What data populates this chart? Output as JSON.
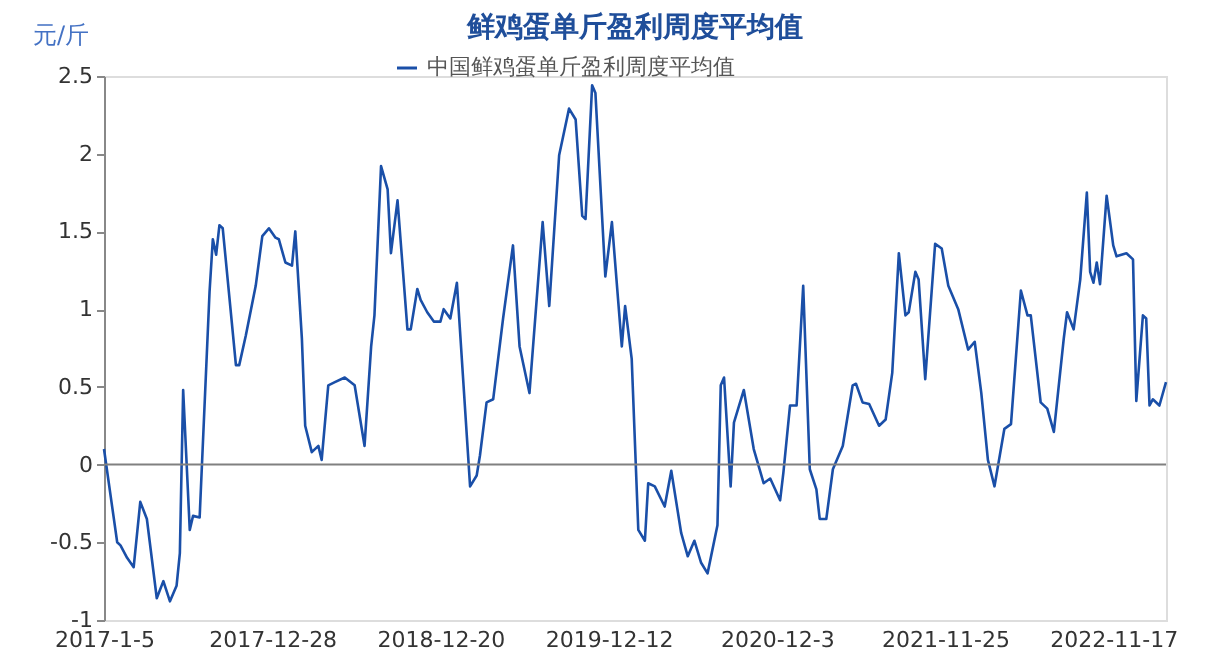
{
  "chart_data": {
    "type": "line",
    "title": "鲜鸡蛋单斤盈利周度平均值",
    "ylabel": "元/斤",
    "xlim": [
      "2017-01-05",
      "2023-03-09"
    ],
    "xticks": [
      {
        "value": "2017-01-05",
        "label": "2017-1-5"
      },
      {
        "value": "2017-12-28",
        "label": "2017-12-28"
      },
      {
        "value": "2018-12-20",
        "label": "2018-12-20"
      },
      {
        "value": "2019-12-12",
        "label": "2019-12-12"
      },
      {
        "value": "2020-12-03",
        "label": "2020-12-3"
      },
      {
        "value": "2021-11-25",
        "label": "2021-11-25"
      },
      {
        "value": "2022-11-17",
        "label": "2022-11-17"
      }
    ],
    "ylim": [
      -1,
      2.5
    ],
    "yticks": [
      -1,
      -0.5,
      0,
      0.5,
      1,
      1.5,
      2,
      2.5
    ],
    "ref_lines": [
      {
        "axis": "y",
        "value": 0,
        "color": "#808080"
      }
    ],
    "grid": false,
    "legend": "top",
    "line_style": "solid",
    "series": [
      {
        "name": "中国鲜鸡蛋单斤盈利周度平均值",
        "color": "#1a4fa8",
        "x": [
          "2017-01-05",
          "2017-02-02",
          "2017-02-09",
          "2017-02-23",
          "2017-03-09",
          "2017-03-23",
          "2017-04-06",
          "2017-04-27",
          "2017-05-11",
          "2017-05-25",
          "2017-06-08",
          "2017-06-15",
          "2017-06-22",
          "2017-07-06",
          "2017-07-13",
          "2017-07-27",
          "2017-08-17",
          "2017-08-24",
          "2017-08-31",
          "2017-09-07",
          "2017-09-14",
          "2017-10-12",
          "2017-10-19",
          "2017-11-02",
          "2017-11-23",
          "2017-12-07",
          "2017-12-21",
          "2018-01-04",
          "2018-01-11",
          "2018-01-25",
          "2018-02-08",
          "2018-02-15",
          "2018-03-01",
          "2018-03-08",
          "2018-03-22",
          "2018-04-05",
          "2018-04-12",
          "2018-04-26",
          "2018-05-10",
          "2018-05-31",
          "2018-06-21",
          "2018-06-28",
          "2018-07-12",
          "2018-07-26",
          "2018-08-02",
          "2018-08-16",
          "2018-08-30",
          "2018-09-06",
          "2018-09-20",
          "2018-10-11",
          "2018-10-18",
          "2018-11-01",
          "2018-11-08",
          "2018-11-22",
          "2018-12-06",
          "2018-12-20",
          "2018-12-27",
          "2019-01-10",
          "2019-01-24",
          "2019-02-21",
          "2019-03-07",
          "2019-03-14",
          "2019-03-28",
          "2019-04-11",
          "2019-05-02",
          "2019-05-23",
          "2019-06-06",
          "2019-06-27",
          "2019-07-25",
          "2019-08-08",
          "2019-08-29",
          "2019-09-05",
          "2019-09-19",
          "2019-10-03",
          "2019-10-17",
          "2019-10-24",
          "2019-11-07",
          "2019-11-14",
          "2019-12-05",
          "2019-12-19",
          "2020-01-09",
          "2020-01-16",
          "2020-01-30",
          "2020-02-13",
          "2020-02-27",
          "2020-03-05",
          "2020-03-19",
          "2020-04-09",
          "2020-04-23",
          "2020-05-14",
          "2020-05-28",
          "2020-06-11",
          "2020-06-25",
          "2020-07-09",
          "2020-07-30",
          "2020-08-06",
          "2020-08-13",
          "2020-08-27",
          "2020-09-03",
          "2020-09-24",
          "2020-10-15",
          "2020-11-05",
          "2020-11-19",
          "2020-12-10",
          "2020-12-17",
          "2020-12-31",
          "2021-01-14",
          "2021-01-28",
          "2021-02-11",
          "2021-02-25",
          "2021-03-04",
          "2021-03-18",
          "2021-04-01",
          "2021-04-22",
          "2021-05-13",
          "2021-05-20",
          "2021-06-03",
          "2021-06-17",
          "2021-07-08",
          "2021-07-22",
          "2021-08-05",
          "2021-08-19",
          "2021-09-02",
          "2021-09-09",
          "2021-09-23",
          "2021-09-30",
          "2021-10-14",
          "2021-11-04",
          "2021-11-18",
          "2021-12-02",
          "2021-12-23",
          "2022-01-13",
          "2022-01-27",
          "2022-02-10",
          "2022-02-24",
          "2022-03-10",
          "2022-03-31",
          "2022-04-14",
          "2022-05-05",
          "2022-05-19",
          "2022-05-26",
          "2022-06-16",
          "2022-06-30",
          "2022-07-14",
          "2022-08-04",
          "2022-08-11",
          "2022-08-25",
          "2022-09-08",
          "2022-09-22",
          "2022-09-29",
          "2022-10-06",
          "2022-10-13",
          "2022-10-20",
          "2022-11-03",
          "2022-11-17",
          "2022-11-24",
          "2022-12-15",
          "2022-12-29",
          "2023-01-05",
          "2023-01-19",
          "2023-01-26",
          "2023-02-02",
          "2023-02-09",
          "2023-02-23",
          "2023-03-09"
        ],
        "values": [
          0.1,
          -0.5,
          -0.52,
          -0.6,
          -0.66,
          -0.24,
          -0.35,
          -0.86,
          -0.75,
          -0.88,
          -0.78,
          -0.57,
          0.48,
          -0.42,
          -0.33,
          -0.34,
          1.11,
          1.45,
          1.35,
          1.54,
          1.52,
          0.64,
          0.64,
          0.83,
          1.15,
          1.47,
          1.52,
          1.46,
          1.45,
          1.3,
          1.28,
          1.5,
          0.81,
          0.25,
          0.08,
          0.12,
          0.03,
          0.51,
          0.53,
          0.56,
          0.51,
          0.38,
          0.12,
          0.76,
          0.96,
          1.92,
          1.77,
          1.36,
          1.7,
          0.87,
          0.87,
          1.13,
          1.06,
          0.98,
          0.92,
          0.92,
          1.0,
          0.94,
          1.17,
          -0.14,
          -0.07,
          0.06,
          0.4,
          0.42,
          0.94,
          1.41,
          0.76,
          0.46,
          1.56,
          1.02,
          1.99,
          2.09,
          2.29,
          2.22,
          1.6,
          1.58,
          2.44,
          2.39,
          1.21,
          1.56,
          0.76,
          1.02,
          0.68,
          -0.42,
          -0.49,
          -0.12,
          -0.14,
          -0.27,
          -0.04,
          -0.44,
          -0.59,
          -0.49,
          -0.63,
          -0.7,
          -0.39,
          0.51,
          0.56,
          -0.14,
          0.27,
          0.48,
          0.1,
          -0.12,
          -0.09,
          -0.23,
          -0.05,
          0.38,
          0.38,
          1.15,
          -0.03,
          -0.16,
          -0.35,
          -0.35,
          -0.03,
          0.12,
          0.51,
          0.52,
          0.4,
          0.39,
          0.25,
          0.29,
          0.59,
          1.36,
          0.96,
          0.98,
          1.24,
          1.19,
          0.55,
          1.42,
          1.39,
          1.15,
          1.0,
          0.74,
          0.79,
          0.46,
          0.03,
          -0.14,
          0.23,
          0.26,
          1.12,
          0.96,
          0.96,
          0.4,
          0.36,
          0.21,
          0.81,
          0.98,
          0.87,
          1.19,
          1.75,
          1.24,
          1.17,
          1.3,
          1.16,
          1.73,
          1.41,
          1.34,
          1.36,
          1.32,
          0.41,
          0.96,
          0.94,
          0.38,
          0.42,
          0.38,
          0.53
        ]
      }
    ]
  }
}
